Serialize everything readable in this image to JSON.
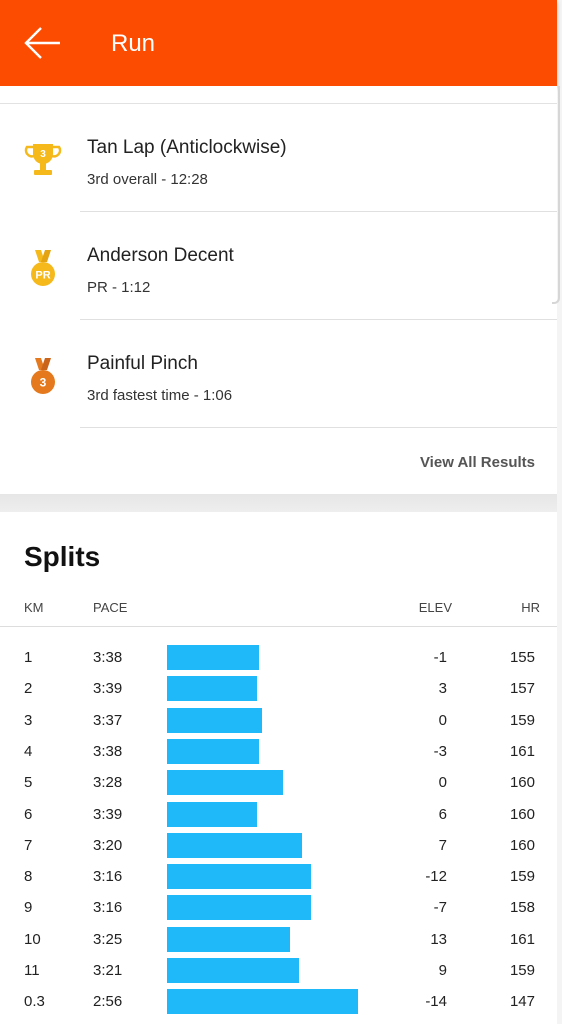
{
  "app_bar": {
    "title": "Run",
    "back_icon": "arrow-left-icon",
    "color": "#fc4c02"
  },
  "segments": [
    {
      "name": "Tan Lap (Anticlockwise)",
      "detail": "3rd overall - 12:28",
      "icon": "trophy-icon",
      "badge": "3",
      "badge_color": "#f5b91c"
    },
    {
      "name": "Anderson Decent",
      "detail": "PR - 1:12",
      "icon": "pr-medal-icon",
      "badge": "PR",
      "badge_color": "#f5b91c"
    },
    {
      "name": "Painful Pinch",
      "detail": "3rd fastest time - 1:06",
      "icon": "bronze-medal-icon",
      "badge": "3",
      "badge_color": "#e47a1d"
    }
  ],
  "view_all_label": "View All Results",
  "splits": {
    "title": "Splits",
    "headers": {
      "km": "KM",
      "pace": "PACE",
      "elev": "ELEV",
      "hr": "HR"
    },
    "bar_color": "#1fb8f9",
    "rows": [
      {
        "km": "1",
        "pace": "3:38",
        "elev": "-1",
        "hr": "155"
      },
      {
        "km": "2",
        "pace": "3:39",
        "elev": "3",
        "hr": "157"
      },
      {
        "km": "3",
        "pace": "3:37",
        "elev": "0",
        "hr": "159"
      },
      {
        "km": "4",
        "pace": "3:38",
        "elev": "-3",
        "hr": "161"
      },
      {
        "km": "5",
        "pace": "3:28",
        "elev": "0",
        "hr": "160"
      },
      {
        "km": "6",
        "pace": "3:39",
        "elev": "6",
        "hr": "160"
      },
      {
        "km": "7",
        "pace": "3:20",
        "elev": "7",
        "hr": "160"
      },
      {
        "km": "8",
        "pace": "3:16",
        "elev": "-12",
        "hr": "159"
      },
      {
        "km": "9",
        "pace": "3:16",
        "elev": "-7",
        "hr": "158"
      },
      {
        "km": "10",
        "pace": "3:25",
        "elev": "13",
        "hr": "161"
      },
      {
        "km": "11",
        "pace": "3:21",
        "elev": "9",
        "hr": "159"
      },
      {
        "km": "0.3",
        "pace": "2:56",
        "elev": "-14",
        "hr": "147"
      }
    ]
  }
}
